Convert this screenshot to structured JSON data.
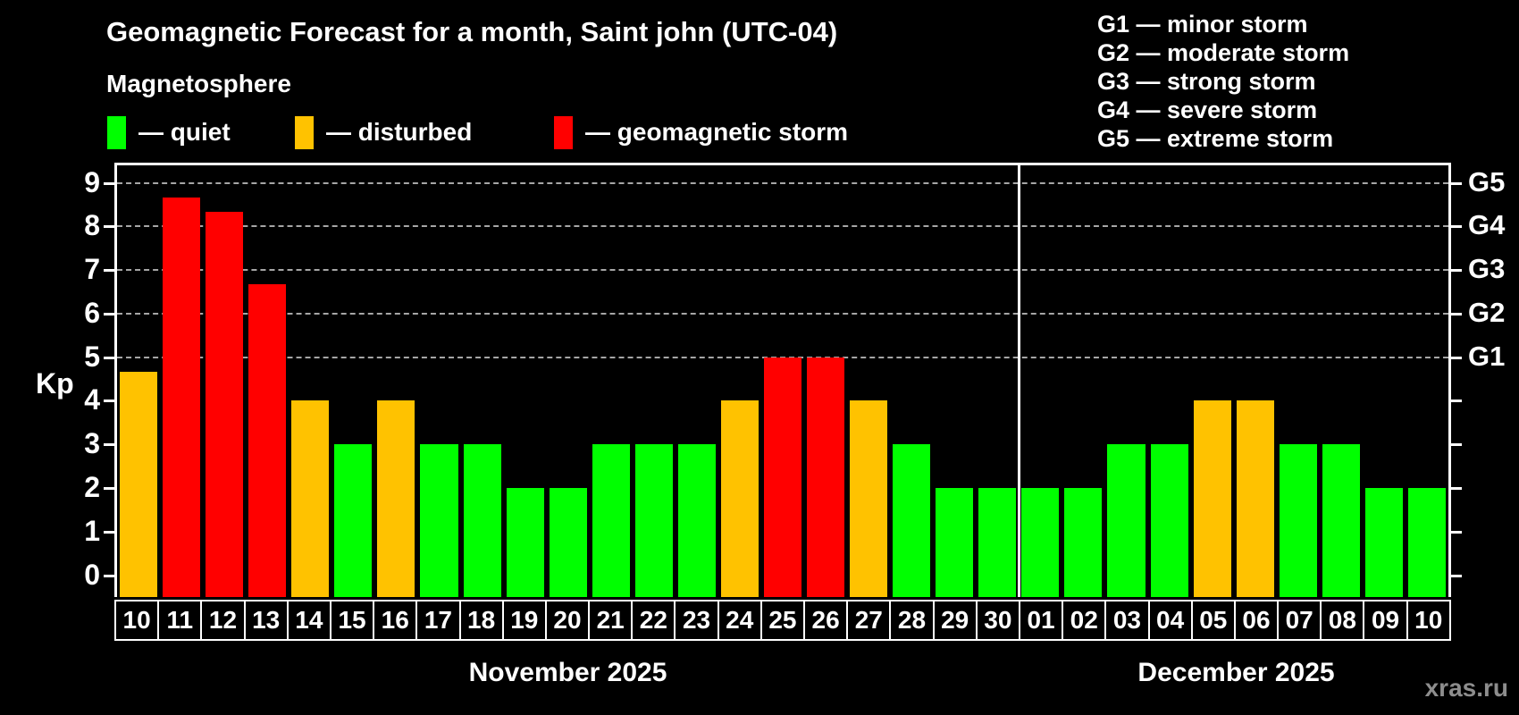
{
  "header": {
    "title": "Geomagnetic Forecast for a month, Saint john (UTC-04)",
    "subtitle": "Magnetosphere"
  },
  "legend": {
    "items": [
      {
        "key": "quiet",
        "label": "— quiet",
        "color": "#00ff00"
      },
      {
        "key": "disturbed",
        "label": "— disturbed",
        "color": "#ffc200"
      },
      {
        "key": "storm",
        "label": "— geomagnetic storm",
        "color": "#ff0000"
      }
    ]
  },
  "g_legend": [
    "G1 — minor storm",
    "G2 — moderate storm",
    "G3 — strong storm",
    "G4 — severe storm",
    "G5 — extreme storm"
  ],
  "chart_data": {
    "type": "bar",
    "title": "Geomagnetic Forecast for a month, Saint john (UTC-04)",
    "ylabel": "Kp",
    "xlabel": "",
    "ylim": [
      -0.5,
      9.4
    ],
    "yticks": [
      0,
      1,
      2,
      3,
      4,
      5,
      6,
      7,
      8,
      9
    ],
    "gridlines_at": [
      5,
      6,
      7,
      8,
      9
    ],
    "grid_style": "dashed horizontal lines only at storm levels G1–G5",
    "right_axis": [
      {
        "kp": 5,
        "label": "G1"
      },
      {
        "kp": 6,
        "label": "G2"
      },
      {
        "kp": 7,
        "label": "G3"
      },
      {
        "kp": 8,
        "label": "G4"
      },
      {
        "kp": 9,
        "label": "G5"
      }
    ],
    "level_colors": {
      "quiet": "#00ff00",
      "disturbed": "#ffc200",
      "storm": "#ff0000"
    },
    "level_rule": "quiet: Kp < 4, disturbed: 4 <= Kp < 5, storm: Kp >= 5",
    "months": [
      {
        "label": "November 2025",
        "days": [
          "10",
          "11",
          "12",
          "13",
          "14",
          "15",
          "16",
          "17",
          "18",
          "19",
          "20",
          "21",
          "22",
          "23",
          "24",
          "25",
          "26",
          "27",
          "28",
          "29",
          "30"
        ],
        "values": [
          4.67,
          8.67,
          8.33,
          6.67,
          4,
          3,
          4,
          3,
          3,
          2,
          2,
          3,
          3,
          3,
          4,
          5,
          5,
          4,
          3,
          2,
          2
        ],
        "levels": [
          "disturbed",
          "storm",
          "storm",
          "storm",
          "disturbed",
          "quiet",
          "disturbed",
          "quiet",
          "quiet",
          "quiet",
          "quiet",
          "quiet",
          "quiet",
          "quiet",
          "disturbed",
          "storm",
          "storm",
          "disturbed",
          "quiet",
          "quiet",
          "quiet"
        ]
      },
      {
        "label": "December 2025",
        "days": [
          "01",
          "02",
          "03",
          "04",
          "05",
          "06",
          "07",
          "08",
          "09",
          "10"
        ],
        "values": [
          2,
          2,
          3,
          3,
          4,
          4,
          3,
          3,
          2,
          2
        ],
        "levels": [
          "quiet",
          "quiet",
          "quiet",
          "quiet",
          "disturbed",
          "disturbed",
          "quiet",
          "quiet",
          "quiet",
          "quiet"
        ]
      }
    ]
  },
  "watermark": "xras.ru"
}
